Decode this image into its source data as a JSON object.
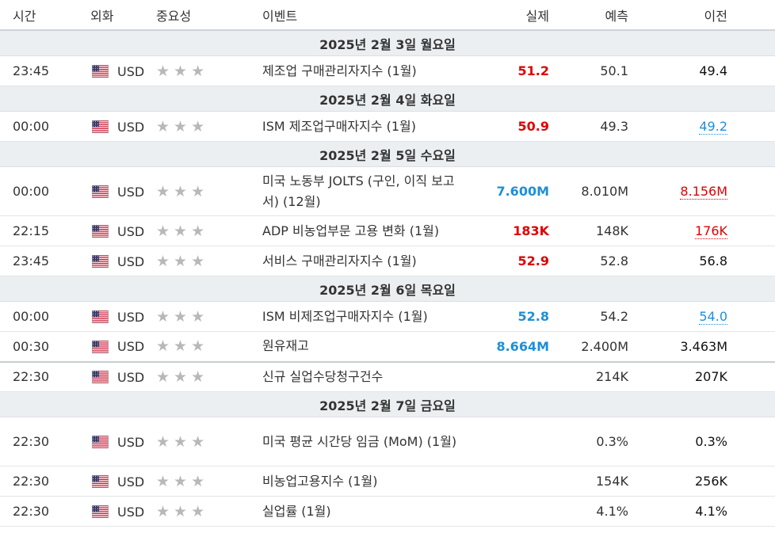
{
  "header": {
    "time": "시간",
    "currency": "외화",
    "importance": "중요성",
    "event": "이벤트",
    "actual": "실제",
    "forecast": "예측",
    "previous": "이전"
  },
  "rows": [
    {
      "type": "date",
      "label": "2025년 2월 3일 월요일"
    },
    {
      "type": "event",
      "time": "23:45",
      "currency": "USD",
      "event": "제조업 구매관리자지수 (1월)",
      "actual": "51.2",
      "actual_color": "red",
      "forecast": "50.1",
      "previous": "49.4",
      "previous_style": "dark"
    },
    {
      "type": "date",
      "label": "2025년 2월 4일 화요일"
    },
    {
      "type": "event",
      "time": "00:00",
      "currency": "USD",
      "event": "ISM 제조업구매자지수 (1월)",
      "actual": "50.9",
      "actual_color": "red",
      "forecast": "49.3",
      "previous": "49.2",
      "previous_style": "ul-blue"
    },
    {
      "type": "date",
      "label": "2025년 2월 5일 수요일"
    },
    {
      "type": "event",
      "time": "00:00",
      "currency": "USD",
      "event": "미국 노동부 JOLTS (구인, 이직 보고서) (12월)",
      "actual": "7.600M",
      "actual_color": "blue",
      "forecast": "8.010M",
      "previous": "8.156M",
      "previous_style": "ul-red"
    },
    {
      "type": "event",
      "time": "22:15",
      "currency": "USD",
      "event": "ADP 비농업부문 고용 변화 (1월)",
      "actual": "183K",
      "actual_color": "red",
      "forecast": "148K",
      "previous": "176K",
      "previous_style": "ul-red"
    },
    {
      "type": "event",
      "time": "23:45",
      "currency": "USD",
      "event": "서비스 구매관리자지수 (1월)",
      "actual": "52.9",
      "actual_color": "red",
      "forecast": "52.8",
      "previous": "56.8",
      "previous_style": "dark"
    },
    {
      "type": "date",
      "label": "2025년 2월 6일 목요일"
    },
    {
      "type": "event",
      "time": "00:00",
      "currency": "USD",
      "event": "ISM 비제조업구매자지수 (1월)",
      "actual": "52.8",
      "actual_color": "blue",
      "forecast": "54.2",
      "previous": "54.0",
      "previous_style": "ul-blue"
    },
    {
      "type": "event",
      "time": "00:30",
      "currency": "USD",
      "event": "원유재고",
      "actual": "8.664M",
      "actual_color": "blue",
      "forecast": "2.400M",
      "previous": "3.463M",
      "previous_style": "dark",
      "thick": true
    },
    {
      "type": "event",
      "time": "22:30",
      "currency": "USD",
      "event": "신규 실업수당청구건수",
      "actual": "",
      "actual_color": "red",
      "forecast": "214K",
      "previous": "207K",
      "previous_style": "dark"
    },
    {
      "type": "date",
      "label": "2025년 2월 7일 금요일"
    },
    {
      "type": "event",
      "time": "22:30",
      "currency": "USD",
      "event": "미국 평균 시간당 임금 (MoM) (1월)",
      "actual": "",
      "actual_color": "red",
      "forecast": "0.3%",
      "previous": "0.3%",
      "previous_style": "dark"
    },
    {
      "type": "event",
      "time": "22:30",
      "currency": "USD",
      "event": "비농업고용지수 (1월)",
      "actual": "",
      "actual_color": "red",
      "forecast": "154K",
      "previous": "256K",
      "previous_style": "dark"
    },
    {
      "type": "event",
      "time": "22:30",
      "currency": "USD",
      "event": "실업률 (1월)",
      "actual": "",
      "actual_color": "red",
      "forecast": "4.1%",
      "previous": "4.1%",
      "previous_style": "dark"
    }
  ],
  "stars": "★★★",
  "colors": {
    "red": "#e00000",
    "blue": "#1f8fd6",
    "star": "#b8b8b8",
    "date_bg": "#eceff2"
  }
}
